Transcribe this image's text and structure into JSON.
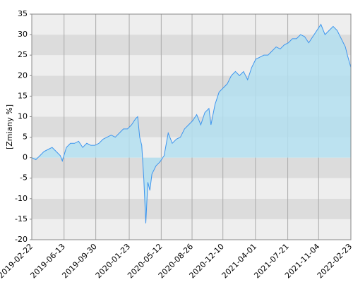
{
  "chart_data": {
    "type": "area",
    "y_label": "[Zmiany %]",
    "x": [
      "2019-02-22",
      "2019-03-08",
      "2019-03-22",
      "2019-04-05",
      "2019-04-19",
      "2019-05-03",
      "2019-05-17",
      "2019-05-31",
      "2019-06-07",
      "2019-06-21",
      "2019-07-05",
      "2019-07-19",
      "2019-08-02",
      "2019-08-16",
      "2019-08-30",
      "2019-09-13",
      "2019-09-27",
      "2019-10-11",
      "2019-10-25",
      "2019-11-08",
      "2019-11-22",
      "2019-12-06",
      "2019-12-20",
      "2020-01-03",
      "2020-01-17",
      "2020-01-31",
      "2020-02-14",
      "2020-02-21",
      "2020-02-28",
      "2020-03-06",
      "2020-03-13",
      "2020-03-20",
      "2020-03-27",
      "2020-04-03",
      "2020-04-10",
      "2020-04-24",
      "2020-05-08",
      "2020-05-22",
      "2020-06-05",
      "2020-06-19",
      "2020-07-03",
      "2020-07-17",
      "2020-07-31",
      "2020-08-14",
      "2020-08-28",
      "2020-09-11",
      "2020-09-25",
      "2020-10-09",
      "2020-10-23",
      "2020-10-30",
      "2020-11-13",
      "2020-11-27",
      "2020-12-11",
      "2020-12-25",
      "2021-01-08",
      "2021-01-22",
      "2021-02-05",
      "2021-02-19",
      "2021-03-05",
      "2021-03-19",
      "2021-04-02",
      "2021-04-16",
      "2021-04-30",
      "2021-05-14",
      "2021-05-28",
      "2021-06-11",
      "2021-06-25",
      "2021-07-09",
      "2021-07-23",
      "2021-08-06",
      "2021-08-20",
      "2021-09-03",
      "2021-09-17",
      "2021-10-01",
      "2021-10-15",
      "2021-10-29",
      "2021-11-12",
      "2021-11-26",
      "2021-12-10",
      "2021-12-24",
      "2022-01-07",
      "2022-01-21",
      "2022-02-04",
      "2022-02-11",
      "2022-02-23"
    ],
    "series": [
      {
        "color": "#3d95ee",
        "fill": "#b3dff0",
        "values": [
          0,
          -0.5,
          0.5,
          1.5,
          2,
          2.5,
          1.5,
          0.5,
          -0.8,
          2.5,
          3.5,
          3.5,
          4,
          2.5,
          3.5,
          3,
          3,
          3.5,
          4.5,
          5,
          5.5,
          5,
          6,
          7,
          7,
          8,
          9.5,
          10,
          5,
          3,
          -5,
          -16,
          -6,
          -8,
          -4,
          -2,
          -1,
          0.5,
          6,
          3.5,
          4.5,
          5,
          7,
          8,
          9,
          10.5,
          8,
          11,
          12,
          8,
          13,
          16,
          17,
          18,
          20,
          21,
          20,
          21,
          19,
          22,
          24,
          24.5,
          25,
          25,
          26,
          27,
          26.5,
          27.5,
          28,
          29,
          29,
          30,
          29.5,
          28,
          29.5,
          31,
          32.5,
          30,
          31,
          32,
          31,
          29,
          27,
          25,
          22
        ]
      }
    ],
    "xlim": [
      "2019-02-22",
      "2022-02-23"
    ],
    "xticks": [
      "2019-02-22",
      "2019-06-13",
      "2019-09-30",
      "2020-01-23",
      "2020-05-12",
      "2020-08-26",
      "2020-12-10",
      "2021-04-01",
      "2021-07-21",
      "2021-11-04",
      "2022-02-23"
    ],
    "ylim": [
      -20,
      35
    ],
    "yticks": [
      -20,
      -15,
      -10,
      -5,
      0,
      5,
      10,
      15,
      20,
      25,
      30,
      35
    ],
    "grid": true
  }
}
